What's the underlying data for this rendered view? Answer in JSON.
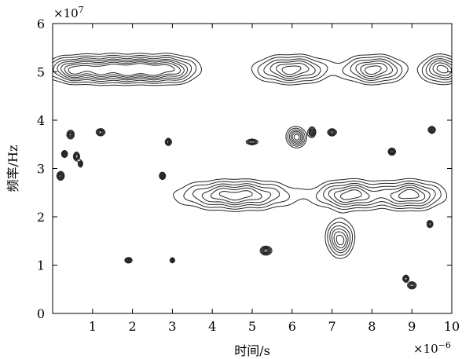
{
  "chart_data": {
    "type": "contour",
    "xlabel": "时间/s",
    "ylabel": "频率/Hz",
    "x_multiplier": "×10",
    "x_multiplier_exp": "−6",
    "y_multiplier": "×10",
    "y_multiplier_exp": "7",
    "xlim": [
      0,
      10
    ],
    "ylim": [
      0,
      6
    ],
    "xticks": [
      "1",
      "2",
      "3",
      "4",
      "5",
      "6",
      "7",
      "8",
      "9",
      "10"
    ],
    "yticks": [
      "0",
      "1",
      "2",
      "3",
      "4",
      "5",
      "6"
    ],
    "grid": false,
    "line_color": "#222222",
    "blobs": [
      {
        "x": 0.5,
        "y": 5.05,
        "sx": 0.38,
        "sy": 0.16
      },
      {
        "x": 1.35,
        "y": 5.05,
        "sx": 0.42,
        "sy": 0.17
      },
      {
        "x": 2.15,
        "y": 5.05,
        "sx": 0.4,
        "sy": 0.16
      },
      {
        "x": 2.95,
        "y": 5.05,
        "sx": 0.42,
        "sy": 0.17
      },
      {
        "x": 6.0,
        "y": 5.05,
        "sx": 0.55,
        "sy": 0.17
      },
      {
        "x": 8.05,
        "y": 5.05,
        "sx": 0.45,
        "sy": 0.17
      },
      {
        "x": 9.75,
        "y": 5.05,
        "sx": 0.3,
        "sy": 0.17
      },
      {
        "x": 4.6,
        "y": 2.45,
        "sx": 0.85,
        "sy": 0.18
      },
      {
        "x": 7.45,
        "y": 2.45,
        "sx": 0.5,
        "sy": 0.18
      },
      {
        "x": 8.95,
        "y": 2.45,
        "sx": 0.5,
        "sy": 0.18
      }
    ],
    "specks": [
      {
        "x": 0.45,
        "y": 3.7,
        "sx": 0.05,
        "sy": 0.05
      },
      {
        "x": 0.3,
        "y": 3.3,
        "sx": 0.04,
        "sy": 0.04
      },
      {
        "x": 0.6,
        "y": 3.25,
        "sx": 0.04,
        "sy": 0.05
      },
      {
        "x": 0.2,
        "y": 2.85,
        "sx": 0.05,
        "sy": 0.05
      },
      {
        "x": 0.7,
        "y": 3.1,
        "sx": 0.03,
        "sy": 0.04
      },
      {
        "x": 1.2,
        "y": 3.75,
        "sx": 0.06,
        "sy": 0.04
      },
      {
        "x": 2.9,
        "y": 3.55,
        "sx": 0.04,
        "sy": 0.04
      },
      {
        "x": 2.75,
        "y": 2.85,
        "sx": 0.04,
        "sy": 0.04
      },
      {
        "x": 1.9,
        "y": 1.1,
        "sx": 0.05,
        "sy": 0.03
      },
      {
        "x": 3.0,
        "y": 1.1,
        "sx": 0.03,
        "sy": 0.03
      },
      {
        "x": 5.0,
        "y": 3.55,
        "sx": 0.08,
        "sy": 0.03
      },
      {
        "x": 5.35,
        "y": 1.3,
        "sx": 0.08,
        "sy": 0.05
      },
      {
        "x": 6.1,
        "y": 3.65,
        "sx": 0.14,
        "sy": 0.12
      },
      {
        "x": 6.5,
        "y": 3.75,
        "sx": 0.05,
        "sy": 0.06
      },
      {
        "x": 7.0,
        "y": 3.75,
        "sx": 0.06,
        "sy": 0.04
      },
      {
        "x": 7.2,
        "y": 1.55,
        "sx": 0.2,
        "sy": 0.22
      },
      {
        "x": 8.5,
        "y": 3.35,
        "sx": 0.05,
        "sy": 0.04
      },
      {
        "x": 8.85,
        "y": 0.72,
        "sx": 0.04,
        "sy": 0.04
      },
      {
        "x": 9.0,
        "y": 0.58,
        "sx": 0.06,
        "sy": 0.04
      },
      {
        "x": 9.5,
        "y": 3.8,
        "sx": 0.05,
        "sy": 0.04
      },
      {
        "x": 9.45,
        "y": 1.85,
        "sx": 0.04,
        "sy": 0.04
      }
    ]
  }
}
